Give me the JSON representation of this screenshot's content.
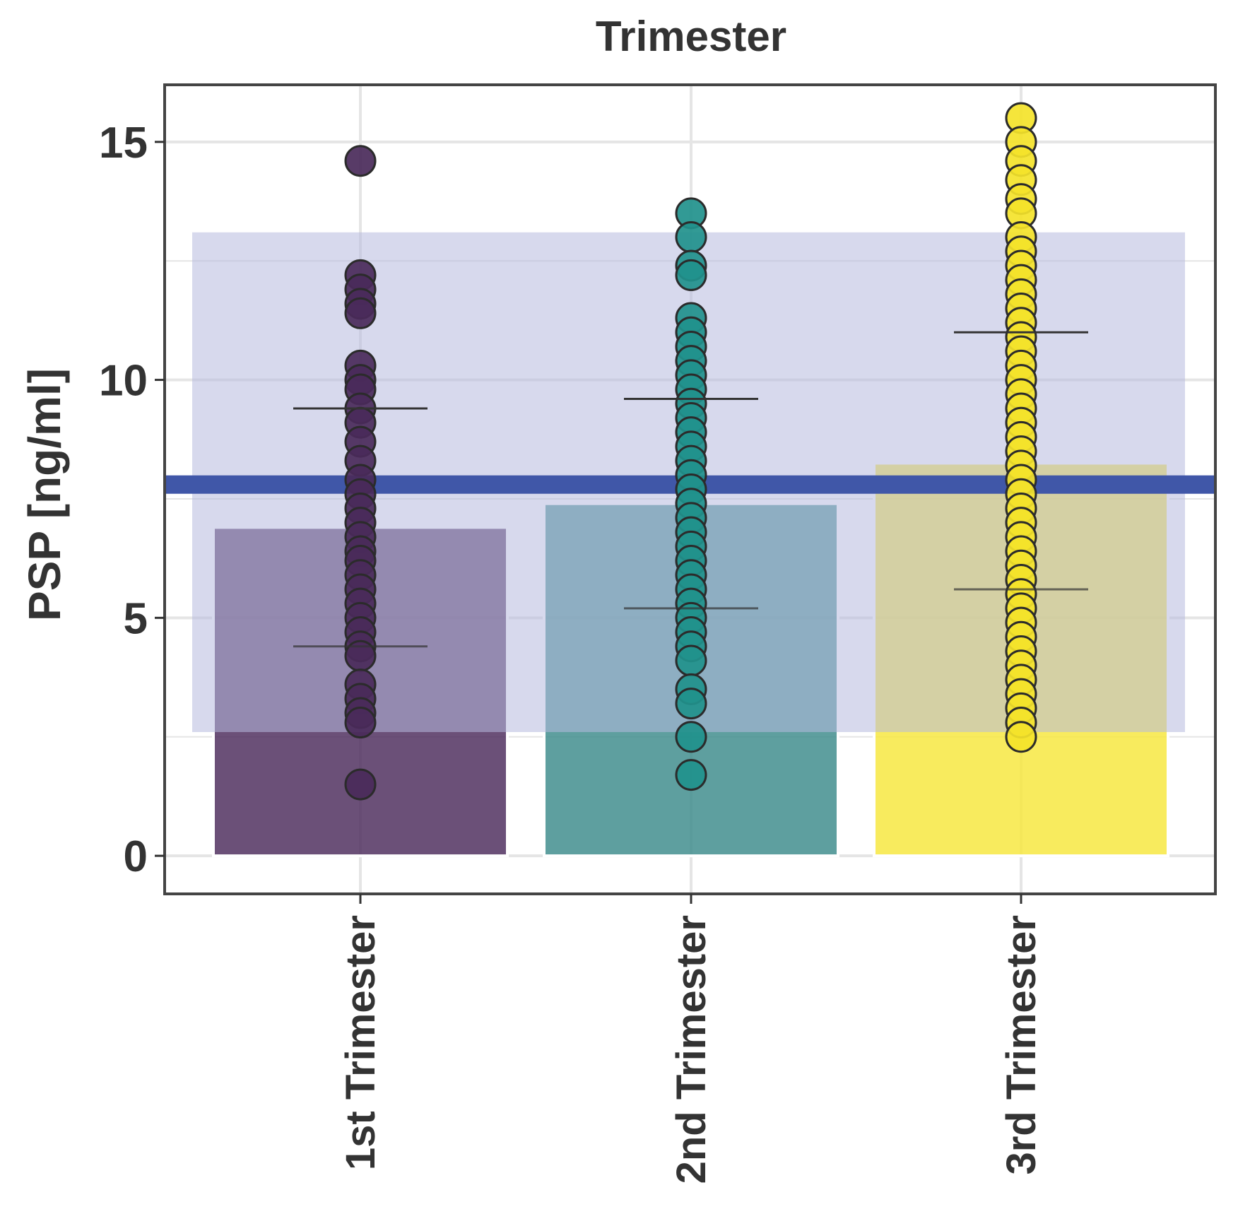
{
  "chart_data": {
    "type": "bar",
    "title": "Trimester",
    "ylabel": "PSP [ng/ml]",
    "xlabel": "",
    "categories": [
      "1st Trimester",
      "2nd Trimester",
      "3rd Trimester"
    ],
    "yticks": [
      0,
      5,
      10,
      15
    ],
    "ylim": [
      -0.8,
      16.2
    ],
    "grid": true,
    "legend": "none",
    "values": [
      6.9,
      7.4,
      8.25
    ],
    "lower_line": [
      4.4,
      5.2,
      5.6
    ],
    "upper_line": [
      9.4,
      9.6,
      11.0
    ],
    "reference_band": {
      "low": 2.6,
      "high": 13.1
    },
    "reference_line": 7.8,
    "points": [
      [
        14.6,
        12.2,
        11.9,
        11.6,
        11.4,
        10.3,
        10.0,
        9.8,
        9.4,
        9.1,
        8.7,
        8.3,
        7.9,
        7.6,
        7.3,
        7.0,
        6.7,
        6.4,
        6.2,
        5.9,
        5.6,
        5.3,
        5.0,
        4.7,
        4.4,
        4.2,
        3.6,
        3.3,
        3.0,
        2.8,
        1.5
      ],
      [
        13.5,
        13.0,
        12.4,
        12.2,
        11.3,
        11.0,
        10.7,
        10.4,
        10.1,
        9.8,
        9.5,
        9.2,
        8.9,
        8.6,
        8.3,
        8.0,
        7.7,
        7.4,
        7.1,
        6.8,
        6.5,
        6.2,
        5.9,
        5.6,
        5.3,
        5.0,
        4.7,
        4.4,
        4.1,
        3.5,
        3.2,
        2.5,
        1.7
      ],
      [
        15.5,
        15.0,
        14.6,
        14.2,
        13.8,
        13.5,
        13.0,
        12.7,
        12.4,
        12.1,
        11.8,
        11.5,
        11.2,
        10.9,
        10.6,
        10.3,
        10.0,
        9.7,
        9.4,
        9.1,
        8.8,
        8.5,
        8.2,
        7.9,
        7.6,
        7.3,
        7.0,
        6.7,
        6.4,
        6.1,
        5.8,
        5.5,
        5.2,
        4.9,
        4.6,
        4.3,
        4.0,
        3.7,
        3.4,
        3.1,
        2.8,
        2.5
      ]
    ],
    "colors": {
      "bars": [
        "#4a2a5a",
        "#3a8a8a",
        "#f7e63a"
      ],
      "points": [
        "#4a2a5a",
        "#21918c",
        "#f4e32a"
      ],
      "band": "#b6b9df",
      "reference_line": "#4057a8",
      "panel_border": "#444444",
      "grid": "#e5e5e5",
      "text": "#333333"
    }
  }
}
